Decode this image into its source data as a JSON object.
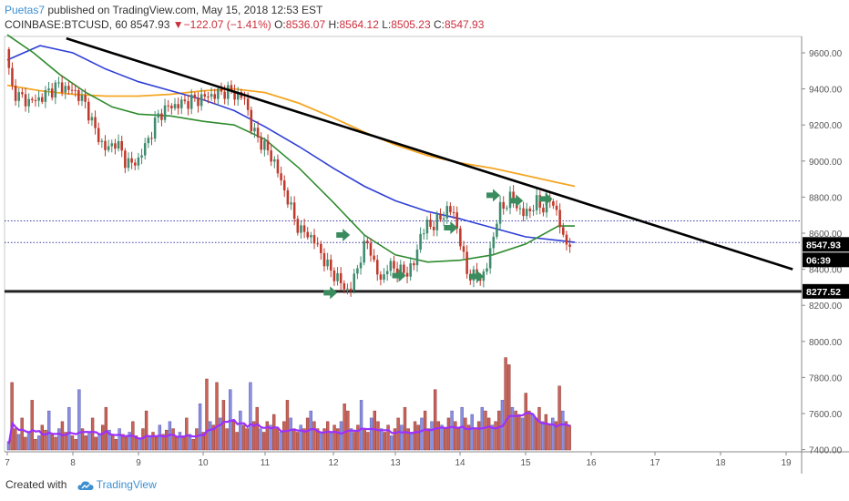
{
  "header": {
    "user": "Puetas7",
    "published_text": " published on TradingView.com, May 15, 2018 12:53 EST",
    "symbol": "COINBASE:BTCUSD, 60",
    "last": "8547.93",
    "change_arrow": "▼",
    "change": "−122.07 (−1.41%)",
    "open_label": "O:",
    "open": "8536.07",
    "high_label": "H:",
    "high": "8564.12",
    "low_label": "L:",
    "low": "8505.23",
    "close_label": "C:",
    "close": "8547.93"
  },
  "footer": {
    "created_with": "Created with",
    "brand": "TradingView"
  },
  "colors": {
    "up": "#3e8b6e",
    "down": "#c0392b",
    "ma_orange": "#f5a623",
    "ma_blue": "#2f3fd6",
    "ma_green": "#2e8b2e",
    "volume_ma": "#9b30ff",
    "vol_up": "#8c8ee0",
    "vol_down": "#c9635a",
    "trendline": "#000000",
    "arrows": "#3a8c5f",
    "price_tag": "#000000"
  },
  "chart_data": {
    "type": "candlestick",
    "x_ticks": [
      "7",
      "8",
      "9",
      "10",
      "11",
      "12",
      "13",
      "14",
      "15",
      "16",
      "17",
      "18",
      "19"
    ],
    "y_ticks": [
      "9600.00",
      "9400.00",
      "9200.00",
      "9000.00",
      "8800.00",
      "8600.00",
      "8400.00",
      "8200.00",
      "8000.00",
      "7800.00",
      "7600.00",
      "7400.00"
    ],
    "ylim": [
      7380,
      9720
    ],
    "xlim": [
      7,
      19.2
    ],
    "last_price_label": "8547.93",
    "countdown_label": "06:39",
    "support_label": "8277.52",
    "support_level": 8277.52,
    "dotted_level_high": 8668,
    "dotted_level_last": 8547.93,
    "price_path": [
      [
        7.0,
        9620
      ],
      [
        7.05,
        9500
      ],
      [
        7.1,
        9400
      ],
      [
        7.2,
        9360
      ],
      [
        7.35,
        9330
      ],
      [
        7.5,
        9340
      ],
      [
        7.65,
        9380
      ],
      [
        7.8,
        9420
      ],
      [
        7.95,
        9400
      ],
      [
        8.1,
        9380
      ],
      [
        8.25,
        9300
      ],
      [
        8.4,
        9150
      ],
      [
        8.55,
        9060
      ],
      [
        8.7,
        9110
      ],
      [
        8.85,
        9000
      ],
      [
        8.95,
        8980
      ],
      [
        9.05,
        9010
      ],
      [
        9.2,
        9120
      ],
      [
        9.35,
        9250
      ],
      [
        9.5,
        9300
      ],
      [
        9.65,
        9310
      ],
      [
        9.8,
        9330
      ],
      [
        9.95,
        9340
      ],
      [
        10.1,
        9360
      ],
      [
        10.25,
        9370
      ],
      [
        10.4,
        9390
      ],
      [
        10.55,
        9370
      ],
      [
        10.7,
        9340
      ],
      [
        10.8,
        9170
      ],
      [
        10.95,
        9100
      ],
      [
        11.05,
        9050
      ],
      [
        11.15,
        8990
      ],
      [
        11.25,
        8880
      ],
      [
        11.35,
        8790
      ],
      [
        11.45,
        8680
      ],
      [
        11.55,
        8610
      ],
      [
        11.65,
        8600
      ],
      [
        11.75,
        8560
      ],
      [
        11.85,
        8500
      ],
      [
        11.95,
        8420
      ],
      [
        12.05,
        8380
      ],
      [
        12.15,
        8330
      ],
      [
        12.25,
        8290
      ],
      [
        12.3,
        8275
      ],
      [
        12.4,
        8380
      ],
      [
        12.5,
        8500
      ],
      [
        12.6,
        8560
      ],
      [
        12.7,
        8390
      ],
      [
        12.8,
        8340
      ],
      [
        12.9,
        8420
      ],
      [
        13.0,
        8410
      ],
      [
        13.1,
        8380
      ],
      [
        13.2,
        8390
      ],
      [
        13.3,
        8430
      ],
      [
        13.4,
        8600
      ],
      [
        13.5,
        8640
      ],
      [
        13.6,
        8650
      ],
      [
        13.7,
        8680
      ],
      [
        13.8,
        8730
      ],
      [
        13.9,
        8720
      ],
      [
        14.0,
        8570
      ],
      [
        14.1,
        8390
      ],
      [
        14.2,
        8360
      ],
      [
        14.3,
        8350
      ],
      [
        14.4,
        8380
      ],
      [
        14.5,
        8550
      ],
      [
        14.6,
        8720
      ],
      [
        14.7,
        8760
      ],
      [
        14.8,
        8800
      ],
      [
        14.9,
        8740
      ],
      [
        15.0,
        8700
      ],
      [
        15.1,
        8740
      ],
      [
        15.2,
        8770
      ],
      [
        15.3,
        8740
      ],
      [
        15.4,
        8790
      ],
      [
        15.5,
        8720
      ],
      [
        15.6,
        8560
      ],
      [
        15.7,
        8547.93
      ]
    ],
    "ma_orange": [
      [
        7.0,
        9420
      ],
      [
        7.5,
        9390
      ],
      [
        8.0,
        9370
      ],
      [
        8.5,
        9360
      ],
      [
        9.0,
        9360
      ],
      [
        9.5,
        9370
      ],
      [
        10.0,
        9390
      ],
      [
        10.5,
        9400
      ],
      [
        11.0,
        9380
      ],
      [
        11.5,
        9320
      ],
      [
        12.0,
        9240
      ],
      [
        12.5,
        9160
      ],
      [
        13.0,
        9090
      ],
      [
        13.5,
        9030
      ],
      [
        14.0,
        8990
      ],
      [
        14.5,
        8960
      ],
      [
        15.0,
        8920
      ],
      [
        15.5,
        8880
      ],
      [
        15.75,
        8860
      ]
    ],
    "ma_blue": [
      [
        7.0,
        9560
      ],
      [
        7.5,
        9640
      ],
      [
        8.0,
        9600
      ],
      [
        8.5,
        9510
      ],
      [
        9.0,
        9440
      ],
      [
        9.5,
        9390
      ],
      [
        10.0,
        9340
      ],
      [
        10.5,
        9280
      ],
      [
        11.0,
        9190
      ],
      [
        11.5,
        9080
      ],
      [
        12.0,
        8960
      ],
      [
        12.5,
        8860
      ],
      [
        13.0,
        8780
      ],
      [
        13.5,
        8720
      ],
      [
        14.0,
        8680
      ],
      [
        14.5,
        8630
      ],
      [
        15.0,
        8580
      ],
      [
        15.5,
        8560
      ],
      [
        15.75,
        8550
      ]
    ],
    "ma_green": [
      [
        7.0,
        9700
      ],
      [
        7.4,
        9600
      ],
      [
        7.8,
        9480
      ],
      [
        8.2,
        9380
      ],
      [
        8.6,
        9300
      ],
      [
        9.0,
        9260
      ],
      [
        9.5,
        9250
      ],
      [
        10.0,
        9220
      ],
      [
        10.5,
        9200
      ],
      [
        11.0,
        9120
      ],
      [
        11.5,
        8960
      ],
      [
        12.0,
        8770
      ],
      [
        12.5,
        8590
      ],
      [
        13.0,
        8480
      ],
      [
        13.5,
        8440
      ],
      [
        14.0,
        8450
      ],
      [
        14.5,
        8480
      ],
      [
        15.0,
        8540
      ],
      [
        15.5,
        8640
      ],
      [
        15.75,
        8640
      ]
    ],
    "trendline": [
      [
        7.9,
        9680
      ],
      [
        19.1,
        8400
      ]
    ],
    "arrows": [
      [
        12.15,
        8590
      ],
      [
        11.95,
        8270
      ],
      [
        13.05,
        8365
      ],
      [
        13.85,
        8630
      ],
      [
        14.25,
        8360
      ],
      [
        14.5,
        8810
      ],
      [
        14.85,
        8780
      ],
      [
        15.3,
        8790
      ]
    ],
    "volume_levels": [
      0.12,
      0.95,
      0.3,
      0.22,
      0.45,
      0.18,
      0.25,
      0.7,
      0.15,
      0.2,
      0.35,
      0.28,
      0.55,
      0.22,
      0.18,
      0.3,
      0.4,
      0.25,
      0.6,
      0.2,
      0.15,
      0.85,
      0.3,
      0.2,
      0.25,
      0.45,
      0.18,
      0.22,
      0.35,
      0.6,
      0.28,
      0.2,
      0.15,
      0.3,
      0.22,
      0.18,
      0.25,
      0.4,
      0.2,
      0.15,
      0.3,
      0.55,
      0.2,
      0.25,
      0.18,
      0.35,
      0.22,
      0.28,
      0.4,
      0.3,
      0.18,
      0.25,
      0.2,
      0.45,
      0.22,
      0.15,
      0.3,
      0.65,
      0.25,
      1.0,
      0.4,
      0.35,
      0.95,
      0.45,
      0.7,
      0.3,
      0.85,
      0.4,
      0.25,
      0.55,
      0.35,
      0.3,
      0.95,
      0.4,
      0.6,
      0.3,
      0.25,
      0.4,
      0.35,
      0.5,
      0.3,
      0.25,
      0.4,
      0.7,
      0.45,
      0.3,
      0.25,
      0.35,
      0.3,
      0.45,
      0.55,
      0.4,
      0.3,
      0.25,
      0.3,
      0.4,
      0.25,
      0.35,
      0.3,
      0.4,
      0.65,
      0.55,
      0.3,
      0.25,
      0.35,
      0.7,
      0.3,
      0.25,
      0.45,
      0.55,
      0.4,
      0.3,
      0.25,
      0.35,
      0.2,
      0.3,
      0.45,
      0.35,
      0.6,
      0.3,
      0.25,
      0.4,
      0.35,
      0.45,
      0.55,
      0.3,
      0.4,
      0.85,
      0.4,
      0.35,
      0.3,
      0.45,
      0.55,
      0.4,
      0.3,
      0.6,
      0.45,
      0.35,
      0.5,
      0.3,
      0.4,
      0.6,
      0.55,
      0.45,
      0.35,
      0.4,
      0.55,
      0.7,
      1.3,
      1.2,
      0.6,
      0.55,
      0.5,
      0.45,
      0.8,
      0.55,
      0.5,
      0.45,
      0.6,
      0.4,
      0.5,
      0.35,
      0.45,
      0.4,
      0.9,
      0.55,
      0.4,
      0.35
    ]
  }
}
